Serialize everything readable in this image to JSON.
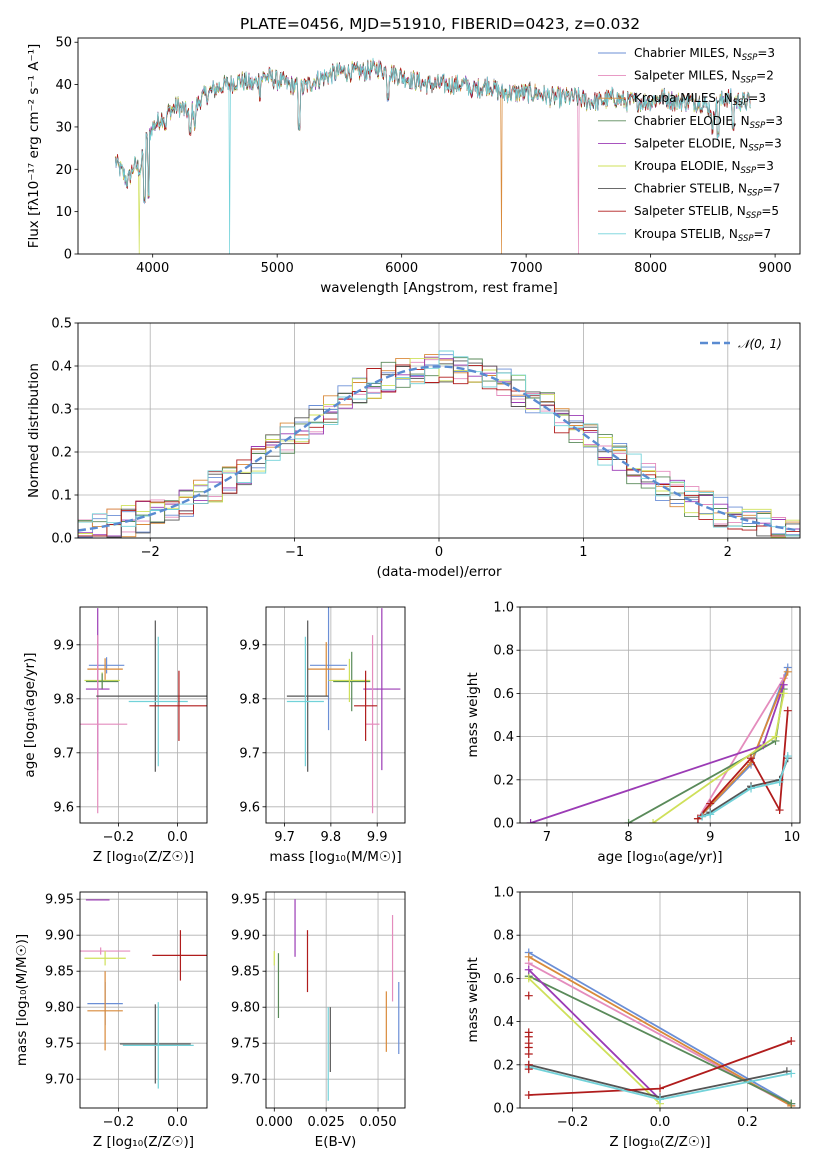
{
  "header": {
    "title": "PLATE=0456, MJD=51910, FIBERID=0423, z=0.032"
  },
  "colors": {
    "Chabrier MILES": "#6b8fd6",
    "Salpeter MILES": "#e48cbd",
    "Kroupa MILES": "#d98a3a",
    "Chabrier ELODIE": "#5a8a5a",
    "Salpeter ELODIE": "#9b3bb5",
    "Kroupa ELODIE": "#cfe05a",
    "Chabrier STELIB": "#555555",
    "Salpeter STELIB": "#b01c1c",
    "Kroupa STELIB": "#72d2d9"
  },
  "chart_data": [
    {
      "id": "spectrum",
      "type": "line",
      "title": "PLATE=0456, MJD=51910, FIBERID=0423, z=0.032",
      "xlabel": "wavelength [Angstrom, rest frame]",
      "ylabel": "Flux [fλ10⁻¹⁷ erg cm⁻² s⁻¹ A⁻¹]",
      "xlim": [
        3400,
        9200
      ],
      "ylim": [
        0,
        51
      ],
      "xticks": [
        "4000",
        "5000",
        "6000",
        "7000",
        "8000",
        "9000"
      ],
      "yticks": [
        "0",
        "10",
        "20",
        "30",
        "40",
        "50"
      ],
      "legend_position": "top-right",
      "legend": [
        {
          "base": "Chabrier MILES, N",
          "sub": "SSP",
          "tail": "=3"
        },
        {
          "base": "Salpeter MILES, N",
          "sub": "SSP",
          "tail": "=2"
        },
        {
          "base": "Kroupa MILES, N",
          "sub": "SSP",
          "tail": "=3"
        },
        {
          "base": "Chabrier ELODIE, N",
          "sub": "SSP",
          "tail": "=3"
        },
        {
          "base": "Salpeter ELODIE, N",
          "sub": "SSP",
          "tail": "=3"
        },
        {
          "base": "Kroupa ELODIE, N",
          "sub": "SSP",
          "tail": "=3"
        },
        {
          "base": "Chabrier STELIB, N",
          "sub": "SSP",
          "tail": "=7"
        },
        {
          "base": "Salpeter STELIB, N",
          "sub": "SSP",
          "tail": "=5"
        },
        {
          "base": "Kroupa STELIB, N",
          "sub": "SSP",
          "tail": "=7"
        }
      ],
      "continuum": [
        [
          3700,
          22
        ],
        [
          3800,
          17
        ],
        [
          3850,
          21
        ],
        [
          3900,
          20
        ],
        [
          3950,
          27
        ],
        [
          4000,
          30
        ],
        [
          4100,
          33
        ],
        [
          4200,
          35
        ],
        [
          4300,
          33
        ],
        [
          4400,
          37
        ],
        [
          4500,
          39
        ],
        [
          4600,
          40
        ],
        [
          4700,
          41
        ],
        [
          4800,
          40
        ],
        [
          4900,
          42
        ],
        [
          5000,
          41
        ],
        [
          5100,
          40
        ],
        [
          5200,
          39
        ],
        [
          5300,
          41
        ],
        [
          5400,
          42
        ],
        [
          5500,
          43
        ],
        [
          5600,
          43
        ],
        [
          5700,
          43
        ],
        [
          5800,
          44
        ],
        [
          5900,
          43
        ],
        [
          6000,
          42
        ],
        [
          6100,
          41
        ],
        [
          6200,
          40
        ],
        [
          6300,
          40
        ],
        [
          6400,
          40
        ],
        [
          6500,
          40
        ],
        [
          6600,
          39
        ],
        [
          6700,
          40
        ],
        [
          6800,
          38
        ],
        [
          6900,
          38
        ],
        [
          7000,
          38
        ],
        [
          7100,
          38
        ],
        [
          7200,
          37
        ],
        [
          7300,
          37
        ],
        [
          7400,
          37
        ],
        [
          7500,
          36
        ],
        [
          7600,
          36
        ],
        [
          7700,
          37
        ],
        [
          7800,
          36
        ],
        [
          7900,
          36
        ],
        [
          8000,
          36
        ],
        [
          8100,
          37
        ],
        [
          8200,
          36
        ],
        [
          8300,
          36
        ],
        [
          8400,
          36
        ],
        [
          8500,
          34
        ],
        [
          8600,
          37
        ],
        [
          8700,
          36
        ],
        [
          8800,
          36
        ]
      ],
      "absorption_lines": [
        [
          3934,
          13
        ],
        [
          3968,
          14
        ],
        [
          4102,
          30
        ],
        [
          4300,
          29
        ],
        [
          4340,
          30
        ],
        [
          4861,
          37
        ],
        [
          5175,
          30
        ],
        [
          5890,
          37
        ],
        [
          6563,
          38
        ],
        [
          8498,
          29
        ],
        [
          8542,
          28
        ],
        [
          8662,
          30
        ]
      ],
      "series_drops": [
        {
          "series": "Kroupa ELODIE",
          "x": 3890,
          "y": 0
        },
        {
          "series": "Kroupa STELIB",
          "x": 4620,
          "y": 0
        },
        {
          "series": "Kroupa MILES",
          "x": 6800,
          "y": 0
        },
        {
          "series": "Salpeter MILES",
          "x": 7420,
          "y": 0
        }
      ]
    },
    {
      "id": "residuals",
      "type": "histogram",
      "xlabel": "(data-model)/error",
      "ylabel": "Normed distribution",
      "xlim": [
        -2.5,
        2.5
      ],
      "ylim": [
        0,
        0.5
      ],
      "xticks": [
        "−2",
        "−1",
        "0",
        "1",
        "2"
      ],
      "yticks": [
        "0.0",
        "0.1",
        "0.2",
        "0.3",
        "0.4",
        "0.5"
      ],
      "bin_width": 0.1,
      "reference": {
        "name": "𝒩(0, 1)",
        "mean": 0,
        "sigma": 1
      },
      "reference_label": {
        "base": "𝒩(0, 1)"
      },
      "legend_position": "top-right"
    },
    {
      "id": "z-age",
      "type": "errorbar",
      "xlabel": "Z [log₁₀(Z/Z☉)]",
      "ylabel": "age  [log₁₀(age/yr)]",
      "xlim": [
        -0.33,
        0.1
      ],
      "ylim": [
        9.57,
        9.97
      ],
      "xticks": [
        "−0.2",
        "0.0"
      ],
      "yticks": [
        "9.6",
        "9.7",
        "9.8",
        "9.9"
      ],
      "points": [
        {
          "series": "Chabrier MILES",
          "x": -0.24,
          "xerr": 0.06,
          "y": 9.862,
          "yerr": 0.015
        },
        {
          "series": "Kroupa MILES",
          "x": -0.245,
          "xerr": 0.06,
          "y": 9.855,
          "yerr": 0.02
        },
        {
          "series": "Kroupa ELODIE",
          "x": -0.255,
          "xerr": 0.06,
          "y": 9.834,
          "yerr": 0.015
        },
        {
          "series": "Chabrier ELODIE",
          "x": -0.255,
          "xerr": 0.055,
          "y": 9.832,
          "yerr": 0.015
        },
        {
          "series": "Salpeter ELODIE",
          "x": -0.27,
          "xerr": 0.04,
          "y": 9.818,
          "yerr": 0.15
        },
        {
          "series": "Salpeter MILES",
          "x": -0.27,
          "xerr": 0.1,
          "y": 9.753,
          "yerr": 0.165
        },
        {
          "series": "Chabrier STELIB",
          "x": -0.075,
          "xerr": 0.2,
          "y": 9.805,
          "yerr": 0.14
        },
        {
          "series": "Kroupa STELIB",
          "x": -0.065,
          "xerr": 0.1,
          "y": 9.795,
          "yerr": 0.12
        },
        {
          "series": "Salpeter STELIB",
          "x": 0.005,
          "xerr": 0.1,
          "y": 9.787,
          "yerr": 0.065
        }
      ]
    },
    {
      "id": "mass-age",
      "type": "errorbar",
      "xlabel": "mass [log₁₀(M/M☉)]",
      "ylabel": "",
      "xlim": [
        9.66,
        9.96
      ],
      "ylim": [
        9.57,
        9.97
      ],
      "xticks": [
        "9.7",
        "9.8",
        "9.9"
      ],
      "yticks": [
        "9.6",
        "9.7",
        "9.8",
        "9.9"
      ],
      "points": [
        {
          "series": "Chabrier MILES",
          "x": 9.795,
          "xerr": 0.04,
          "y": 9.862,
          "yerr": 0.12
        },
        {
          "series": "Kroupa MILES",
          "x": 9.79,
          "xerr": 0.04,
          "y": 9.855,
          "yerr": 0.05
        },
        {
          "series": "Chabrier ELODIE",
          "x": 9.845,
          "xerr": 0.04,
          "y": 9.832,
          "yerr": 0.055
        },
        {
          "series": "Kroupa ELODIE",
          "x": 9.84,
          "xerr": 0.045,
          "y": 9.834,
          "yerr": 0.04
        },
        {
          "series": "Salpeter ELODIE",
          "x": 9.91,
          "xerr": 0.04,
          "y": 9.818,
          "yerr": 0.15
        },
        {
          "series": "Salpeter MILES",
          "x": 9.89,
          "xerr": 0.015,
          "y": 9.753,
          "yerr": 0.165
        },
        {
          "series": "Chabrier STELIB",
          "x": 9.75,
          "xerr": 0.045,
          "y": 9.805,
          "yerr": 0.14
        },
        {
          "series": "Kroupa STELIB",
          "x": 9.745,
          "xerr": 0.04,
          "y": 9.795,
          "yerr": 0.12
        },
        {
          "series": "Salpeter STELIB",
          "x": 9.875,
          "xerr": 0.025,
          "y": 9.787,
          "yerr": 0.065
        }
      ]
    },
    {
      "id": "age-weight",
      "type": "line",
      "xlabel": "age  [log₁₀(age/yr)]",
      "ylabel": "mass weight",
      "xlim": [
        6.67,
        10.1
      ],
      "ylim": [
        0,
        1
      ],
      "xticks": [
        "7",
        "8",
        "9",
        "10"
      ],
      "yticks": [
        "0.0",
        "0.2",
        "0.4",
        "0.6",
        "0.8",
        "1.0"
      ],
      "series": [
        {
          "name": "Chabrier MILES",
          "x": [
            8.85,
            9.5,
            9.95
          ],
          "y": [
            0.02,
            0.27,
            0.72
          ]
        },
        {
          "name": "Salpeter MILES",
          "x": [
            8.85,
            9.9
          ],
          "y": [
            0.02,
            0.67
          ]
        },
        {
          "name": "Kroupa MILES",
          "x": [
            8.85,
            9.5,
            9.95
          ],
          "y": [
            0.02,
            0.28,
            0.7
          ]
        },
        {
          "name": "Chabrier ELODIE",
          "x": [
            8.0,
            9.8,
            9.9
          ],
          "y": [
            0.0,
            0.38,
            0.62
          ]
        },
        {
          "name": "Salpeter ELODIE",
          "x": [
            6.8,
            9.65,
            9.9
          ],
          "y": [
            0.0,
            0.36,
            0.64
          ]
        },
        {
          "name": "Kroupa ELODIE",
          "x": [
            8.3,
            9.8,
            9.9
          ],
          "y": [
            0.0,
            0.4,
            0.6
          ]
        },
        {
          "name": "Chabrier STELIB",
          "x": [
            8.9,
            9.0,
            9.5,
            9.85,
            9.95
          ],
          "y": [
            0.03,
            0.05,
            0.17,
            0.2,
            0.3
          ]
        },
        {
          "name": "Salpeter STELIB",
          "x": [
            8.85,
            9.0,
            9.5,
            9.85,
            9.95
          ],
          "y": [
            0.02,
            0.09,
            0.3,
            0.06,
            0.52
          ]
        },
        {
          "name": "Kroupa STELIB",
          "x": [
            8.9,
            9.0,
            9.5,
            9.85,
            9.95
          ],
          "y": [
            0.03,
            0.04,
            0.16,
            0.19,
            0.31
          ]
        }
      ]
    },
    {
      "id": "z-mass",
      "type": "errorbar",
      "xlabel": "Z [log₁₀(Z/Z☉)]",
      "ylabel": "mass [log₁₀(M/M☉)]",
      "xlim": [
        -0.33,
        0.1
      ],
      "ylim": [
        9.66,
        9.96
      ],
      "xticks": [
        "−0.2",
        "0.0"
      ],
      "yticks": [
        "9.70",
        "9.75",
        "9.80",
        "9.85",
        "9.90",
        "9.95"
      ],
      "points": [
        {
          "series": "Salpeter ELODIE",
          "x": -0.27,
          "xerr": 0.04,
          "y": 9.949,
          "yerr": 0.0
        },
        {
          "series": "Salpeter MILES",
          "x": -0.26,
          "xerr": 0.1,
          "y": 9.878,
          "yerr": 0.005
        },
        {
          "series": "Kroupa ELODIE",
          "x": -0.245,
          "xerr": 0.07,
          "y": 9.868,
          "yerr": 0.01
        },
        {
          "series": "Chabrier MILES",
          "x": -0.245,
          "xerr": 0.06,
          "y": 9.805,
          "yerr": 0.03
        },
        {
          "series": "Kroupa MILES",
          "x": -0.245,
          "xerr": 0.06,
          "y": 9.795,
          "yerr": 0.055
        },
        {
          "series": "Chabrier STELIB",
          "x": -0.075,
          "xerr": 0.12,
          "y": 9.749,
          "yerr": 0.055
        },
        {
          "series": "Kroupa STELIB",
          "x": -0.065,
          "xerr": 0.12,
          "y": 9.747,
          "yerr": 0.06
        },
        {
          "series": "Salpeter STELIB",
          "x": 0.01,
          "xerr": 0.095,
          "y": 9.872,
          "yerr": 0.035
        }
      ]
    },
    {
      "id": "ebv-mass",
      "type": "errorbar",
      "xlabel": "E(B-V)",
      "ylabel": "",
      "xlim": [
        -0.004,
        0.063
      ],
      "ylim": [
        9.66,
        9.96
      ],
      "xticks": [
        "0.000",
        "0.025",
        "0.050"
      ],
      "yticks": [
        "9.70",
        "9.75",
        "9.80",
        "9.85",
        "9.90",
        "9.95"
      ],
      "points": [
        {
          "series": "Kroupa ELODIE",
          "x": 0.0,
          "y": 9.868,
          "yerr": 0.01
        },
        {
          "series": "Chabrier ELODIE",
          "x": 0.002,
          "y": 9.83,
          "yerr": 0.045
        },
        {
          "series": "Salpeter ELODIE",
          "x": 0.01,
          "y": 9.91,
          "yerr": 0.04
        },
        {
          "series": "Salpeter STELIB",
          "x": 0.016,
          "y": 9.864,
          "yerr": 0.043
        },
        {
          "series": "Chabrier STELIB",
          "x": 0.027,
          "y": 9.755,
          "yerr": 0.045
        },
        {
          "series": "Kroupa STELIB",
          "x": 0.026,
          "y": 9.735,
          "yerr": 0.065
        },
        {
          "series": "Kroupa MILES",
          "x": 0.054,
          "y": 9.78,
          "yerr": 0.042
        },
        {
          "series": "Salpeter MILES",
          "x": 0.057,
          "y": 9.868,
          "yerr": 0.06
        },
        {
          "series": "Chabrier MILES",
          "x": 0.06,
          "y": 9.785,
          "yerr": 0.05
        }
      ]
    },
    {
      "id": "z-weight",
      "type": "line",
      "xlabel": "Z [log₁₀(Z/Z☉)]",
      "ylabel": "mass weight",
      "xlim": [
        -0.32,
        0.32
      ],
      "ylim": [
        0,
        1
      ],
      "xticks": [
        "−0.2",
        "0.0",
        "0.2"
      ],
      "yticks": [
        "0.0",
        "0.2",
        "0.4",
        "0.6",
        "0.8",
        "1.0"
      ],
      "series": [
        {
          "name": "Chabrier MILES",
          "x": [
            -0.3,
            0.3
          ],
          "y": [
            0.72,
            0.02
          ]
        },
        {
          "name": "Salpeter MILES",
          "x": [
            -0.3,
            0.3
          ],
          "y": [
            0.67,
            0.01
          ]
        },
        {
          "name": "Kroupa MILES",
          "x": [
            -0.3,
            0.3
          ],
          "y": [
            0.7,
            0.01
          ]
        },
        {
          "name": "Chabrier ELODIE",
          "x": [
            -0.3,
            0.3
          ],
          "y": [
            0.61,
            0.02
          ]
        },
        {
          "name": "Salpeter ELODIE",
          "x": [
            -0.3,
            0.0
          ],
          "y": [
            0.64,
            0.04
          ]
        },
        {
          "name": "Kroupa ELODIE",
          "x": [
            -0.3,
            0.0
          ],
          "y": [
            0.6,
            0.02
          ]
        },
        {
          "name": "Chabrier STELIB",
          "x": [
            -0.3,
            0.0,
            0.29
          ],
          "y": [
            0.2,
            0.05,
            0.17
          ]
        },
        {
          "name": "Salpeter STELIB",
          "x": [
            -0.3,
            0.0,
            0.3
          ],
          "y": [
            0.06,
            0.09,
            0.31
          ]
        },
        {
          "name": "Kroupa STELIB",
          "x": [
            -0.3,
            0.0,
            0.3
          ],
          "y": [
            0.19,
            0.04,
            0.16
          ]
        }
      ],
      "markers_at_z_minus_0_3": [
        0.52,
        0.35,
        0.33,
        0.3,
        0.28,
        0.25,
        0.2,
        0.18
      ]
    }
  ]
}
